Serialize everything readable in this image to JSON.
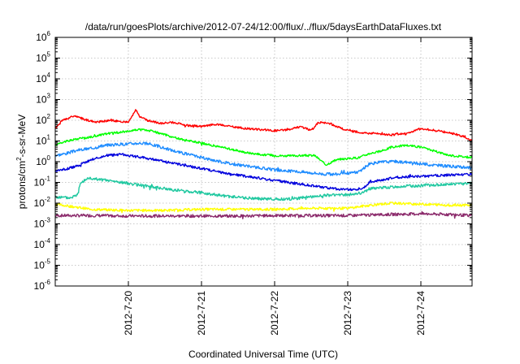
{
  "chart_data": {
    "type": "line",
    "title": "/data/run/goesPlots/archive/2012-07-24/12:00/flux/../flux/5daysEarthDataFluxes.txt",
    "xlabel": "Coordinated Universal Time (UTC)",
    "ylabel": {
      "base": "protons/cm",
      "sup": "2",
      "rest": "-s-sr-MeV"
    },
    "yscale": "log",
    "ylim_exp": [
      -6,
      6
    ],
    "ytick_exponents": [
      -6,
      -5,
      -4,
      -3,
      -2,
      -1,
      0,
      1,
      2,
      3,
      4,
      5,
      6
    ],
    "ytick_base": "10",
    "xlim": [
      0,
      5.7
    ],
    "x_ticks": [
      {
        "label": "2012-7-20",
        "x": 1
      },
      {
        "label": "2012-7-21",
        "x": 2
      },
      {
        "label": "2012-7-22",
        "x": 3
      },
      {
        "label": "2012-7-23",
        "x": 4
      },
      {
        "label": "2012-7-24",
        "x": 5
      }
    ],
    "x_unit_note": "x values are days from 2012-07-19 00:00 UTC",
    "grid": true,
    "series": [
      {
        "color": "#ff0000",
        "noise": 0.05,
        "seed": 1,
        "x": [
          0,
          0.1,
          0.25,
          0.35,
          0.55,
          0.75,
          1.0,
          1.1,
          1.15,
          1.25,
          1.45,
          1.6,
          1.8,
          2.0,
          2.2,
          2.4,
          2.6,
          2.8,
          3.0,
          3.2,
          3.35,
          3.5,
          3.6,
          3.75,
          3.85,
          4.0,
          4.2,
          4.4,
          4.6,
          4.8,
          5.0,
          5.2,
          5.4,
          5.6,
          5.7
        ],
        "y": [
          1.6,
          2.0,
          2.2,
          2.1,
          1.9,
          2.0,
          1.9,
          2.5,
          2.2,
          2.0,
          1.85,
          1.9,
          1.75,
          1.7,
          1.8,
          1.7,
          1.6,
          1.55,
          1.5,
          1.55,
          1.7,
          1.5,
          1.9,
          1.85,
          1.7,
          1.5,
          1.4,
          1.35,
          1.3,
          1.35,
          1.6,
          1.5,
          1.4,
          1.2,
          1.0
        ]
      },
      {
        "color": "#00ff00",
        "noise": 0.05,
        "seed": 2,
        "x": [
          0,
          0.15,
          0.3,
          0.5,
          0.7,
          0.95,
          1.15,
          1.3,
          1.5,
          1.7,
          2.0,
          2.2,
          2.4,
          2.6,
          2.8,
          3.0,
          3.2,
          3.4,
          3.55,
          3.7,
          3.85,
          4.0,
          4.15,
          4.3,
          4.45,
          4.6,
          4.8,
          5.0,
          5.2,
          5.4,
          5.7
        ],
        "y": [
          0.8,
          1.0,
          1.1,
          1.2,
          1.35,
          1.45,
          1.55,
          1.5,
          1.3,
          1.1,
          0.9,
          0.75,
          0.6,
          0.45,
          0.35,
          0.3,
          0.28,
          0.3,
          0.3,
          -0.15,
          0.1,
          0.15,
          0.2,
          0.4,
          0.5,
          0.7,
          0.8,
          0.7,
          0.5,
          0.3,
          0.2
        ]
      },
      {
        "color": "#1e8cff",
        "noise": 0.07,
        "seed": 3,
        "x": [
          0,
          0.15,
          0.3,
          0.5,
          0.7,
          0.95,
          1.15,
          1.3,
          1.5,
          1.7,
          2.0,
          2.2,
          2.4,
          2.6,
          2.8,
          3.0,
          3.2,
          3.4,
          3.55,
          3.7,
          3.85,
          4.0,
          4.15,
          4.3,
          4.5,
          4.7,
          5.0,
          5.3,
          5.7
        ],
        "y": [
          0.3,
          0.4,
          0.55,
          0.65,
          0.8,
          0.85,
          0.9,
          0.85,
          0.65,
          0.45,
          0.2,
          0.05,
          -0.1,
          -0.2,
          -0.3,
          -0.4,
          -0.45,
          -0.5,
          -0.55,
          -0.6,
          -0.6,
          -0.55,
          -0.5,
          -0.1,
          0.0,
          0.0,
          -0.1,
          -0.2,
          -0.3
        ]
      },
      {
        "color": "#0000dd",
        "noise": 0.06,
        "seed": 4,
        "x": [
          0,
          0.15,
          0.3,
          0.5,
          0.7,
          0.9,
          1.0,
          1.2,
          1.5,
          1.8,
          2.1,
          2.4,
          2.7,
          3.0,
          3.3,
          3.6,
          3.8,
          4.0,
          4.2,
          4.3,
          4.5,
          4.7,
          5.0,
          5.3,
          5.7
        ],
        "y": [
          -0.45,
          -0.35,
          -0.2,
          0.1,
          0.3,
          0.35,
          0.3,
          0.2,
          0.0,
          -0.2,
          -0.4,
          -0.6,
          -0.75,
          -0.9,
          -1.05,
          -1.2,
          -1.3,
          -1.35,
          -1.3,
          -1.0,
          -0.85,
          -0.75,
          -0.7,
          -0.65,
          -0.6
        ]
      },
      {
        "color": "#20c8a0",
        "noise": 0.07,
        "seed": 5,
        "x": [
          0,
          0.2,
          0.3,
          0.35,
          0.45,
          0.6,
          0.8,
          1.0,
          1.3,
          1.6,
          2.0,
          2.3,
          2.6,
          2.9,
          3.2,
          3.5,
          3.8,
          4.0,
          4.2,
          4.3,
          4.5,
          4.7,
          5.0,
          5.3,
          5.7
        ],
        "y": [
          -1.7,
          -1.75,
          -1.6,
          -1.0,
          -0.8,
          -0.85,
          -0.95,
          -1.05,
          -1.2,
          -1.35,
          -1.5,
          -1.65,
          -1.75,
          -1.8,
          -1.8,
          -1.7,
          -1.6,
          -1.6,
          -1.5,
          -1.3,
          -1.25,
          -1.2,
          -1.15,
          -1.1,
          -1.05
        ]
      },
      {
        "color": "#ffff00",
        "noise": 0.06,
        "seed": 6,
        "x": [
          0,
          0.5,
          1.0,
          1.5,
          2.0,
          2.5,
          3.0,
          3.5,
          4.0,
          4.3,
          4.6,
          5.0,
          5.4,
          5.7
        ],
        "y": [
          -2.05,
          -2.3,
          -2.35,
          -2.35,
          -2.3,
          -2.3,
          -2.3,
          -2.25,
          -2.25,
          -2.1,
          -2.0,
          -2.05,
          -2.1,
          -2.1
        ]
      },
      {
        "color": "#8b2a6b",
        "noise": 0.07,
        "seed": 7,
        "x": [
          0,
          0.5,
          1.0,
          1.5,
          2.0,
          2.5,
          3.0,
          3.5,
          4.0,
          4.5,
          5.0,
          5.4,
          5.7
        ],
        "y": [
          -2.6,
          -2.6,
          -2.62,
          -2.62,
          -2.62,
          -2.62,
          -2.6,
          -2.6,
          -2.6,
          -2.55,
          -2.52,
          -2.55,
          -2.6
        ]
      }
    ]
  }
}
